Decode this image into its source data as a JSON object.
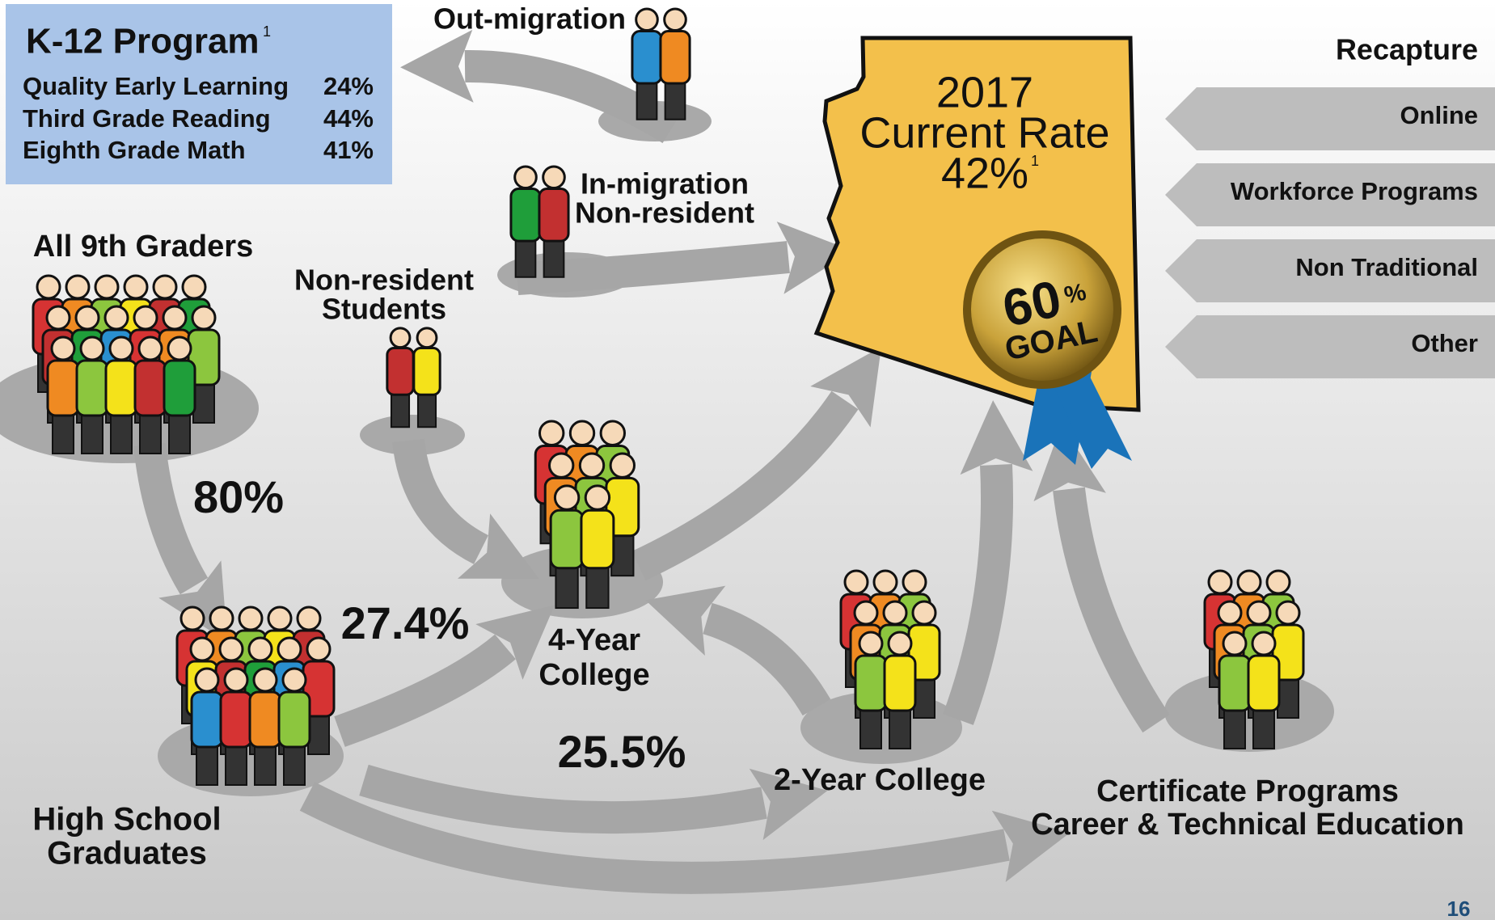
{
  "k12": {
    "title": "K-12 Program",
    "note": "1",
    "rows": [
      [
        "Quality Early Learning",
        "24%"
      ],
      [
        "Third Grade Reading",
        "44%"
      ],
      [
        "Eighth Grade Math",
        "41%"
      ]
    ]
  },
  "flows": {
    "out_migration": "Out-migration",
    "in_migration": [
      "In-migration",
      "Non-resident"
    ],
    "all_9th": "All 9th Graders",
    "nonresident_students": [
      "Non-resident",
      "Students"
    ],
    "hs_rate": "80%",
    "four_year_rate": "27.4%",
    "two_year_rate": "25.5%",
    "four_year": [
      "4-Year",
      "College"
    ],
    "two_year": "2-Year College",
    "high_school": [
      "High School",
      "Graduates"
    ],
    "certificate": [
      "Certificate Programs",
      "Career & Technical Education"
    ]
  },
  "state": {
    "year": "2017",
    "label": "Current Rate",
    "rate": "42%",
    "note": "1",
    "goal_rate": "60",
    "goal_unit": "%",
    "goal": "GOAL"
  },
  "recapture": {
    "title": "Recapture",
    "items": [
      "Online",
      "Workforce Programs",
      "Non Traditional",
      "Other"
    ]
  },
  "page_number": "16"
}
